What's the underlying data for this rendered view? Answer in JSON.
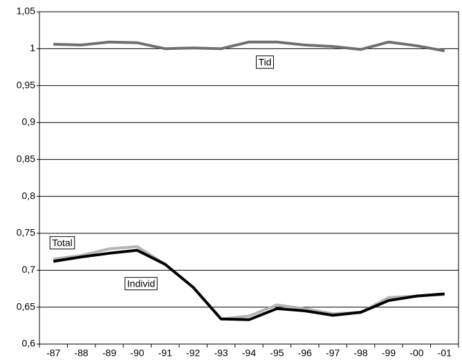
{
  "chart_data": {
    "type": "line",
    "categories": [
      "-87",
      "-88",
      "-89",
      "-90",
      "-91",
      "-92",
      "-93",
      "-94",
      "-95",
      "-96",
      "-97",
      "-98",
      "-99",
      "-00",
      "-01"
    ],
    "series": [
      {
        "name": "Tid",
        "color": "#707070",
        "values": [
          1.006,
          1.005,
          1.009,
          1.008,
          1.0,
          1.001,
          1.0,
          1.009,
          1.009,
          1.005,
          1.003,
          0.999,
          1.009,
          1.004,
          0.997
        ]
      },
      {
        "name": "Total",
        "color": "#b4b4b4",
        "values": [
          0.715,
          0.72,
          0.729,
          0.732,
          0.708,
          0.677,
          0.634,
          0.638,
          0.653,
          0.648,
          0.641,
          0.643,
          0.663,
          0.665,
          0.667
        ]
      },
      {
        "name": "Individ",
        "color": "#000000",
        "values": [
          0.712,
          0.718,
          0.723,
          0.727,
          0.708,
          0.677,
          0.634,
          0.633,
          0.648,
          0.645,
          0.639,
          0.643,
          0.659,
          0.665,
          0.668
        ]
      }
    ],
    "ylim": [
      0.6,
      1.05
    ],
    "yticks": [
      {
        "value": 0.6,
        "label": "0,6"
      },
      {
        "value": 0.65,
        "label": "0,65"
      },
      {
        "value": 0.7,
        "label": "0,7"
      },
      {
        "value": 0.75,
        "label": "0,75"
      },
      {
        "value": 0.8,
        "label": "0,8"
      },
      {
        "value": 0.85,
        "label": "0,85"
      },
      {
        "value": 0.9,
        "label": "0,9"
      },
      {
        "value": 0.95,
        "label": "0,95"
      },
      1,
      {
        "value": 1.05,
        "label": "1,05"
      }
    ],
    "grid": true
  }
}
